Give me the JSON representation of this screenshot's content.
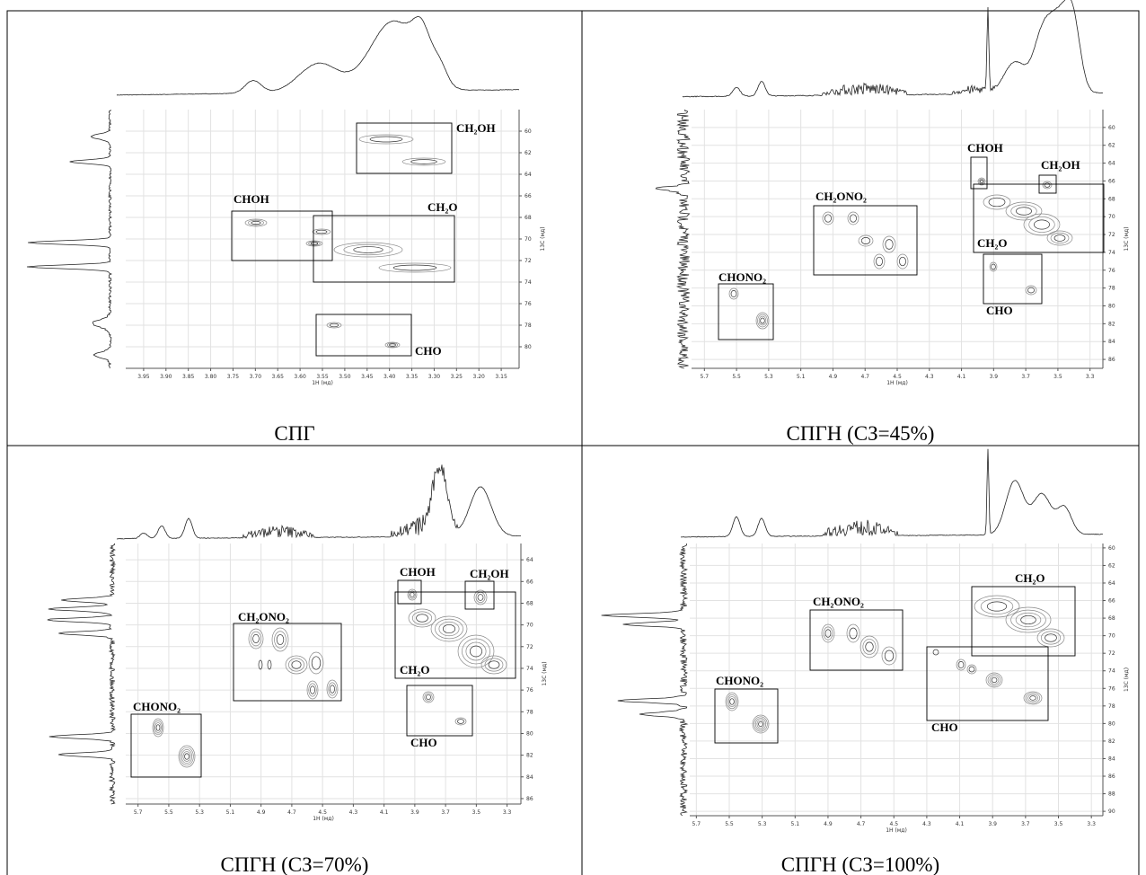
{
  "panels": [
    {
      "caption": "СПГ",
      "x_label": "1H (мд)",
      "y_label": "13C (мд)",
      "xlim": [
        3.99,
        3.11
      ],
      "ylim": [
        58,
        82
      ],
      "xticks": [
        3.95,
        {
          "value": 3.9,
          "label": "3.90"
        },
        3.85,
        {
          "value": 3.8,
          "label": "3.80"
        },
        3.75,
        {
          "value": 3.7,
          "label": "3.70"
        },
        3.65,
        {
          "value": 3.6,
          "label": "3.60"
        },
        3.55,
        {
          "value": 3.5,
          "label": "3.50"
        },
        3.45,
        {
          "value": 3.4,
          "label": "3.40"
        },
        3.35,
        {
          "value": 3.3,
          "label": "3.30"
        },
        3.25,
        {
          "value": 3.2,
          "label": "3.20"
        },
        3.15
      ],
      "yticks": [
        60,
        62,
        64,
        66,
        68,
        70,
        72,
        74,
        76,
        78,
        80
      ],
      "annotations": [
        "CH₂OH",
        "CHOH",
        "CH₂O",
        "CHO"
      ]
    },
    {
      "caption": "СПГН (СЗ=45%)",
      "x_label": "1H (мд)",
      "y_label": "13C (мд)",
      "xlim": [
        5.78,
        3.22
      ],
      "ylim": [
        58,
        87
      ],
      "xticks": [
        5.7,
        5.5,
        5.3,
        5.1,
        4.9,
        4.7,
        4.5,
        4.3,
        4.1,
        3.9,
        3.7,
        3.5,
        3.3
      ],
      "yticks": [
        60,
        62,
        64,
        66,
        68,
        70,
        72,
        74,
        76,
        78,
        80,
        82,
        84,
        86
      ],
      "annotations": [
        "CHOH",
        "CH₂OH",
        "CH₂ONO₂",
        "CH₂O",
        "CHONO₂",
        "CHO"
      ]
    },
    {
      "caption": "СПГН (СЗ=70%)",
      "x_label": "1H (мд)",
      "y_label": "13C (мд)",
      "xlim": [
        5.78,
        3.21
      ],
      "ylim": [
        62.5,
        86.5
      ],
      "xticks": [
        5.7,
        5.5,
        5.3,
        5.1,
        4.9,
        4.7,
        4.5,
        4.3,
        4.1,
        3.9,
        3.7,
        3.5,
        3.3
      ],
      "yticks": [
        64,
        66,
        68,
        70,
        72,
        74,
        76,
        78,
        80,
        82,
        84,
        86
      ],
      "annotations": [
        "CHOH",
        "CH₂OH",
        "CH₂ONO₂",
        "CH₂O",
        "CHONO₂",
        "CHO"
      ]
    },
    {
      "caption": "СПГН (СЗ=100%)",
      "x_label": "1H (мд)",
      "y_label": "13C (мд)",
      "xlim": [
        5.74,
        3.23
      ],
      "ylim": [
        59.5,
        90.5
      ],
      "xticks": [
        5.7,
        5.5,
        5.3,
        5.1,
        4.9,
        4.7,
        4.5,
        4.3,
        4.1,
        3.9,
        3.7,
        3.5,
        3.3
      ],
      "yticks": [
        60,
        62,
        64,
        66,
        68,
        70,
        72,
        74,
        76,
        78,
        80,
        82,
        84,
        86,
        88,
        90
      ],
      "annotations": [
        "CH₂O",
        "CH₂ONO₂",
        "CHONO₂",
        "CHO"
      ]
    }
  ]
}
